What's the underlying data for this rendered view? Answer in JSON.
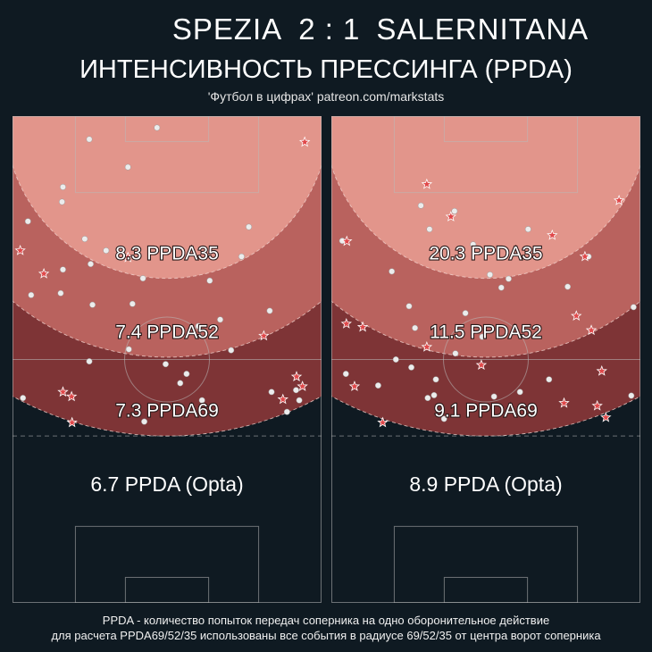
{
  "header": {
    "home_team": "SPEZIA",
    "score": "2 : 1",
    "away_team": "SALERNITANA",
    "subtitle": "ИНТЕНСИВНОСТЬ ПРЕССИНГА (PPDA)",
    "credit": "'Футбол в цифрах' patreon.com/markstats"
  },
  "colors": {
    "background": "#0f1a22",
    "zone35": "#e2958b",
    "zone52": "#b9625e",
    "zone69": "#7e3436",
    "pitch_line": "#b9b9b9",
    "point_dot": "#ececec",
    "point_star": "#e0484a"
  },
  "chart_data": [
    {
      "type": "scatter",
      "team": "SPEZIA",
      "x_range": [
        0,
        68
      ],
      "y_range": [
        0,
        105
      ],
      "zones": [
        {
          "radius": 35,
          "label": "8.3 PPDA35",
          "value": 8.3
        },
        {
          "radius": 52,
          "label": "7.4 PPDA52",
          "value": 7.4
        },
        {
          "radius": 69,
          "label": "7.3 PPDA69",
          "value": 7.3
        }
      ],
      "opta_label": "6.7 PPDA (Opta)",
      "opta_value": 6.7,
      "dots": [
        [
          31.8,
          2.5
        ],
        [
          16.9,
          5.0
        ],
        [
          25.4,
          11.0
        ],
        [
          11.1,
          15.3
        ],
        [
          10.9,
          18.5
        ],
        [
          3.4,
          22.7
        ],
        [
          15.9,
          26.5
        ],
        [
          52.0,
          23.9
        ],
        [
          20.6,
          29.0
        ],
        [
          17.2,
          31.9
        ],
        [
          11.1,
          33.1
        ],
        [
          28.7,
          35.0
        ],
        [
          43.4,
          35.5
        ],
        [
          50.4,
          30.3
        ],
        [
          4.1,
          38.6
        ],
        [
          10.6,
          38.2
        ],
        [
          17.6,
          40.7
        ],
        [
          26.4,
          40.5
        ],
        [
          56.6,
          42.0
        ],
        [
          45.7,
          43.9
        ],
        [
          40.9,
          45.3
        ],
        [
          25.6,
          50.3
        ],
        [
          48.1,
          50.5
        ],
        [
          16.9,
          52.9
        ],
        [
          33.7,
          53.5
        ],
        [
          38.3,
          55.6
        ],
        [
          2.3,
          60.8
        ],
        [
          62.4,
          59.1
        ],
        [
          41.7,
          61.3
        ],
        [
          57.0,
          59.5
        ],
        [
          36.9,
          57.6
        ],
        [
          63.1,
          61.3
        ],
        [
          60.4,
          63.8
        ],
        [
          29.0,
          65.9
        ]
      ],
      "stars": [
        [
          64.3,
          5.6
        ],
        [
          1.7,
          29.0
        ],
        [
          6.9,
          34.0
        ],
        [
          25.4,
          30.5
        ],
        [
          55.3,
          47.4
        ],
        [
          11.1,
          59.5
        ],
        [
          62.5,
          56.2
        ],
        [
          63.8,
          58.3
        ],
        [
          13.0,
          60.5
        ],
        [
          59.5,
          61.1
        ],
        [
          13.1,
          66.1
        ]
      ]
    },
    {
      "type": "scatter",
      "team": "SALERNITANA",
      "x_range": [
        0,
        68
      ],
      "y_range": [
        0,
        105
      ],
      "zones": [
        {
          "radius": 35,
          "label": "20.3 PPDA35",
          "value": 20.3
        },
        {
          "radius": 52,
          "label": "11.5 PPDA52",
          "value": 11.5
        },
        {
          "radius": 69,
          "label": "9.1 PPDA69",
          "value": 9.1
        }
      ],
      "opta_label": "8.9 PPDA (Opta)",
      "opta_value": 8.9,
      "dots": [
        [
          19.7,
          19.3
        ],
        [
          27.1,
          20.5
        ],
        [
          21.6,
          24.4
        ],
        [
          2.4,
          26.9
        ],
        [
          31.2,
          27.7
        ],
        [
          43.3,
          24.4
        ],
        [
          13.3,
          33.5
        ],
        [
          37.4,
          37.0
        ],
        [
          34.9,
          34.2
        ],
        [
          39.0,
          35.1
        ],
        [
          56.6,
          30.3
        ],
        [
          52.0,
          36.8
        ],
        [
          17.1,
          41.0
        ],
        [
          29.5,
          42.5
        ],
        [
          66.5,
          41.2
        ],
        [
          18.4,
          45.7
        ],
        [
          14.2,
          52.5
        ],
        [
          33.2,
          47.6
        ],
        [
          27.3,
          51.2
        ],
        [
          17.6,
          54.2
        ],
        [
          3.2,
          55.6
        ],
        [
          23.0,
          56.8
        ],
        [
          22.6,
          60.2
        ],
        [
          10.3,
          58.1
        ],
        [
          41.5,
          59.5
        ],
        [
          24.8,
          65.3
        ],
        [
          35.8,
          60.5
        ],
        [
          21.2,
          60.8
        ],
        [
          47.9,
          56.8
        ],
        [
          66.0,
          60.3
        ]
      ],
      "stars": [
        [
          21.0,
          14.7
        ],
        [
          26.3,
          21.7
        ],
        [
          63.3,
          18.2
        ],
        [
          48.6,
          25.7
        ],
        [
          3.4,
          27.0
        ],
        [
          55.8,
          30.3
        ],
        [
          53.9,
          43.1
        ],
        [
          57.2,
          46.2
        ],
        [
          3.3,
          44.8
        ],
        [
          6.9,
          45.5
        ],
        [
          21.0,
          49.8
        ],
        [
          33.0,
          53.7
        ],
        [
          59.5,
          55.0
        ],
        [
          5.1,
          58.3
        ],
        [
          51.2,
          61.9
        ],
        [
          58.5,
          62.5
        ],
        [
          60.4,
          65.0
        ],
        [
          11.3,
          66.1
        ]
      ]
    }
  ],
  "footer": {
    "line1": "PPDA - количество попыток передач соперника на одно оборонительное действие",
    "line2": "для расчета PPDA69/52/35 использованы все события в радиусе 69/52/35 от центра ворот соперника"
  }
}
